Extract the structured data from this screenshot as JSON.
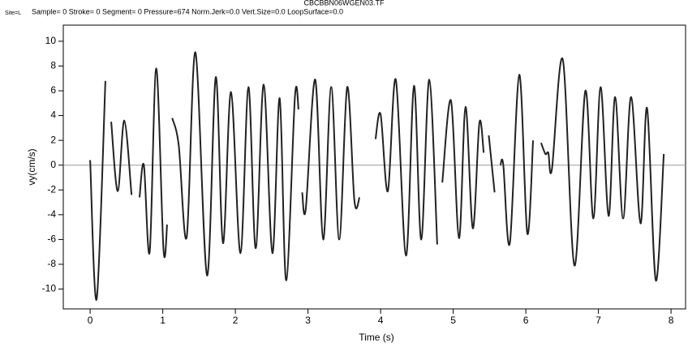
{
  "chart_data": {
    "type": "line",
    "title": "CBCBBN06WGEN03.TF",
    "site": "Site=L",
    "subtitle": "Sample= 0 Stroke= 0 Segment= 0 Pressure=674 Norm.Jerk=0.0 Vert.Size=0.0 LoopSurface=0.0",
    "x_label": "Time (s)",
    "y_label": "vy(cm/s)",
    "xlim": [
      -0.37,
      8.2
    ],
    "ylim": [
      -11.6,
      11.3
    ],
    "xticks": [
      0,
      1,
      2,
      3,
      4,
      5,
      6,
      7,
      8
    ],
    "yticks": [
      -10,
      -8,
      -6,
      -4,
      -2,
      0,
      2,
      4,
      6,
      8,
      10
    ],
    "zero_line": true,
    "series": [
      {
        "name": "vy",
        "color": "#222222",
        "x": [
          0,
          0.09,
          0.21,
          null,
          0.29,
          0.38,
          0.47,
          0.57,
          null,
          0.68,
          0.74,
          0.82,
          0.91,
          1.01,
          1.06,
          null,
          1.13,
          1.22,
          1.33,
          1.45,
          1.61,
          1.73,
          1.83,
          1.94,
          2.07,
          2.18,
          2.28,
          2.39,
          2.51,
          2.61,
          2.7,
          2.82,
          2.87,
          null,
          2.92,
          2.97,
          3.1,
          3.21,
          3.32,
          3.43,
          3.54,
          3.64,
          3.71,
          null,
          3.93,
          4.0,
          4.1,
          4.21,
          4.35,
          4.46,
          4.56,
          4.67,
          4.78,
          null,
          4.85,
          4.97,
          5.08,
          5.17,
          5.27,
          5.36,
          5.42,
          null,
          5.49,
          5.57,
          null,
          5.65,
          5.69,
          5.78,
          5.91,
          6.02,
          6.1,
          null,
          6.21,
          6.27,
          6.31,
          6.36,
          6.51,
          6.67,
          6.82,
          6.93,
          7.03,
          7.14,
          7.23,
          7.34,
          7.45,
          7.58,
          7.67,
          7.79,
          7.9
        ],
        "values": [
          0.4,
          -10.8,
          6.8,
          null,
          3.5,
          -2.1,
          3.6,
          -2.4,
          null,
          -2.6,
          0,
          -7.0,
          7.8,
          -6.8,
          -4.8,
          null,
          3.8,
          1.6,
          -5.8,
          9.1,
          -8.9,
          7.1,
          -6.3,
          5.9,
          -7.1,
          6.3,
          -6.7,
          6.5,
          -7.1,
          5.4,
          -9.3,
          5.5,
          4.5,
          null,
          -2.2,
          -3.5,
          6.9,
          -6.0,
          6.3,
          -6.0,
          6.3,
          -2.9,
          -2.6,
          null,
          2.1,
          4.1,
          -2.1,
          6.9,
          -7.3,
          6.4,
          -6.0,
          6.9,
          -6.4,
          null,
          -1.4,
          5.2,
          -5.9,
          4.7,
          -5.1,
          3.4,
          1.0,
          null,
          2.4,
          -2.2,
          null,
          0,
          0,
          -6.3,
          7.3,
          -5.5,
          2.0,
          null,
          1.8,
          0.9,
          1.0,
          -0.3,
          8.5,
          -8.1,
          6.0,
          -4.3,
          6.3,
          -4.1,
          5.5,
          -4.3,
          5.5,
          -4.7,
          4.6,
          -9.3,
          0.9
        ]
      }
    ]
  }
}
